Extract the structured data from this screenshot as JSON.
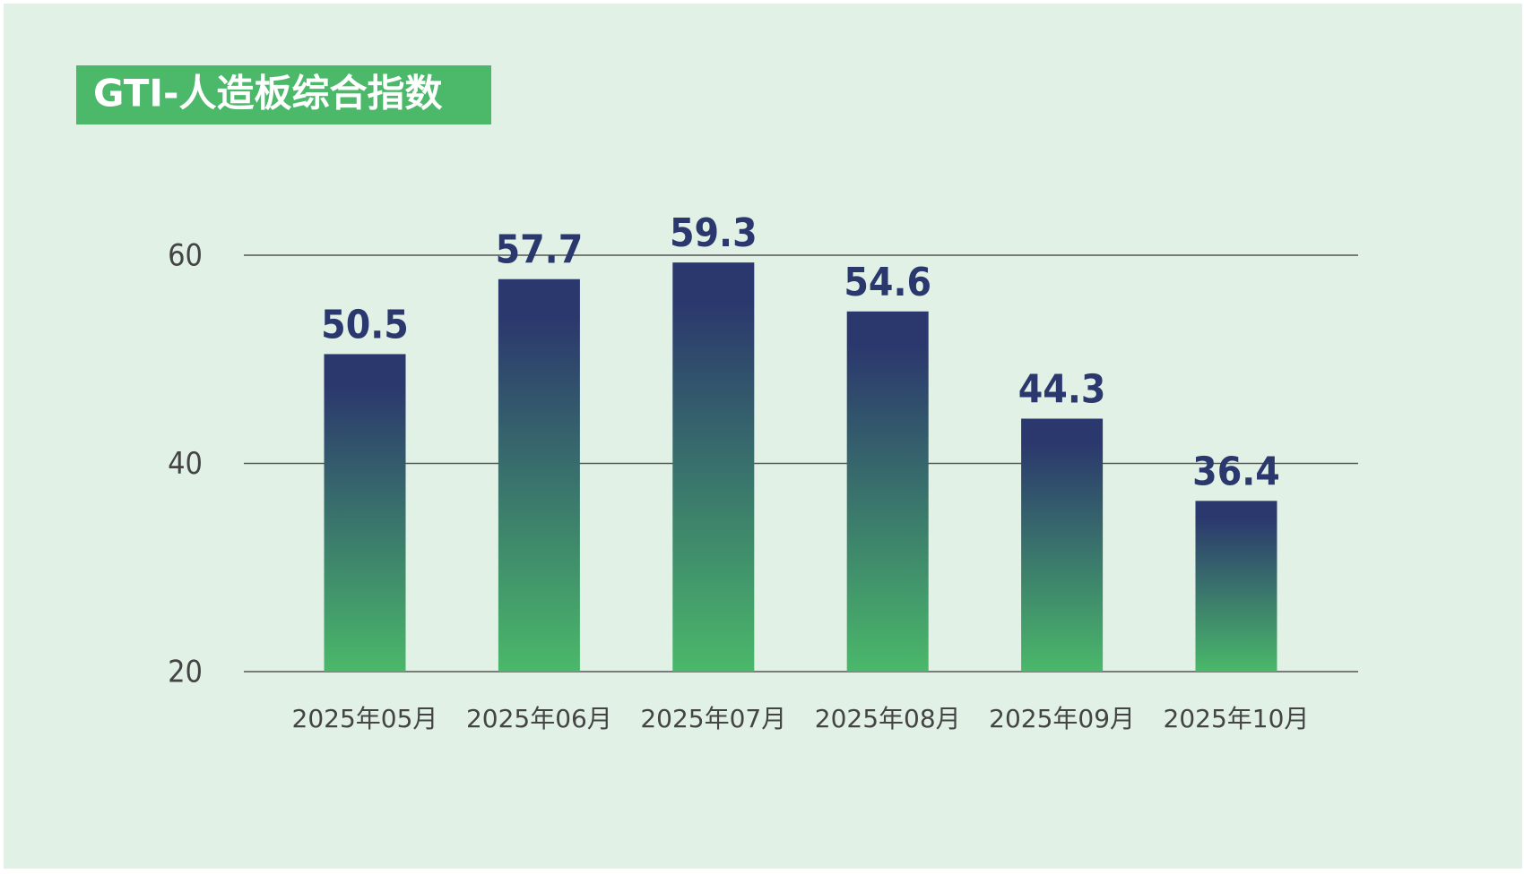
{
  "chart_data": {
    "type": "bar",
    "title": "GTI-人造板综合指数",
    "categories": [
      "2025年05月",
      "2025年06月",
      "2025年07月",
      "2025年08月",
      "2025年09月",
      "2025年10月"
    ],
    "values": [
      50.5,
      57.7,
      59.3,
      54.6,
      44.3,
      36.4
    ],
    "color_top": "#2b386d",
    "color_bottom": "#4ab86a",
    "ylim": [
      20,
      60
    ],
    "yticks": [
      20,
      40,
      60
    ],
    "grid": true
  }
}
